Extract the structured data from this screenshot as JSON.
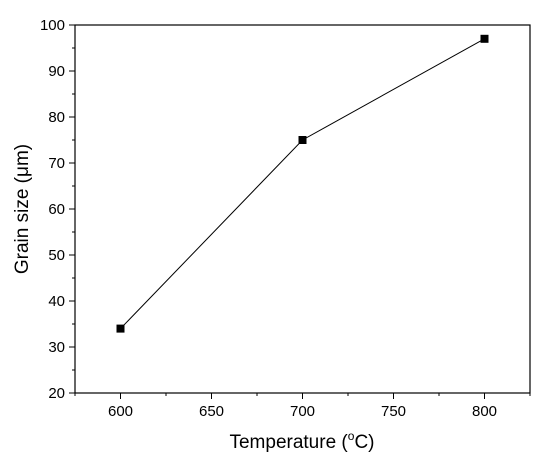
{
  "chart_data": {
    "type": "line",
    "xlabel": "Temperature (",
    "xlabel_sup": "o",
    "xlabel_tail": "C)",
    "ylabel": "Grain size (μm)",
    "xlim": [
      575,
      825
    ],
    "ylim": [
      20,
      100
    ],
    "xticks": [
      600,
      650,
      700,
      750,
      800
    ],
    "yticks": [
      20,
      30,
      40,
      50,
      60,
      70,
      80,
      90,
      100
    ],
    "series": [
      {
        "x": [
          600,
          700,
          800
        ],
        "y": [
          34,
          75,
          97
        ],
        "marker": "square",
        "color": "#000000"
      }
    ],
    "grid": false
  }
}
